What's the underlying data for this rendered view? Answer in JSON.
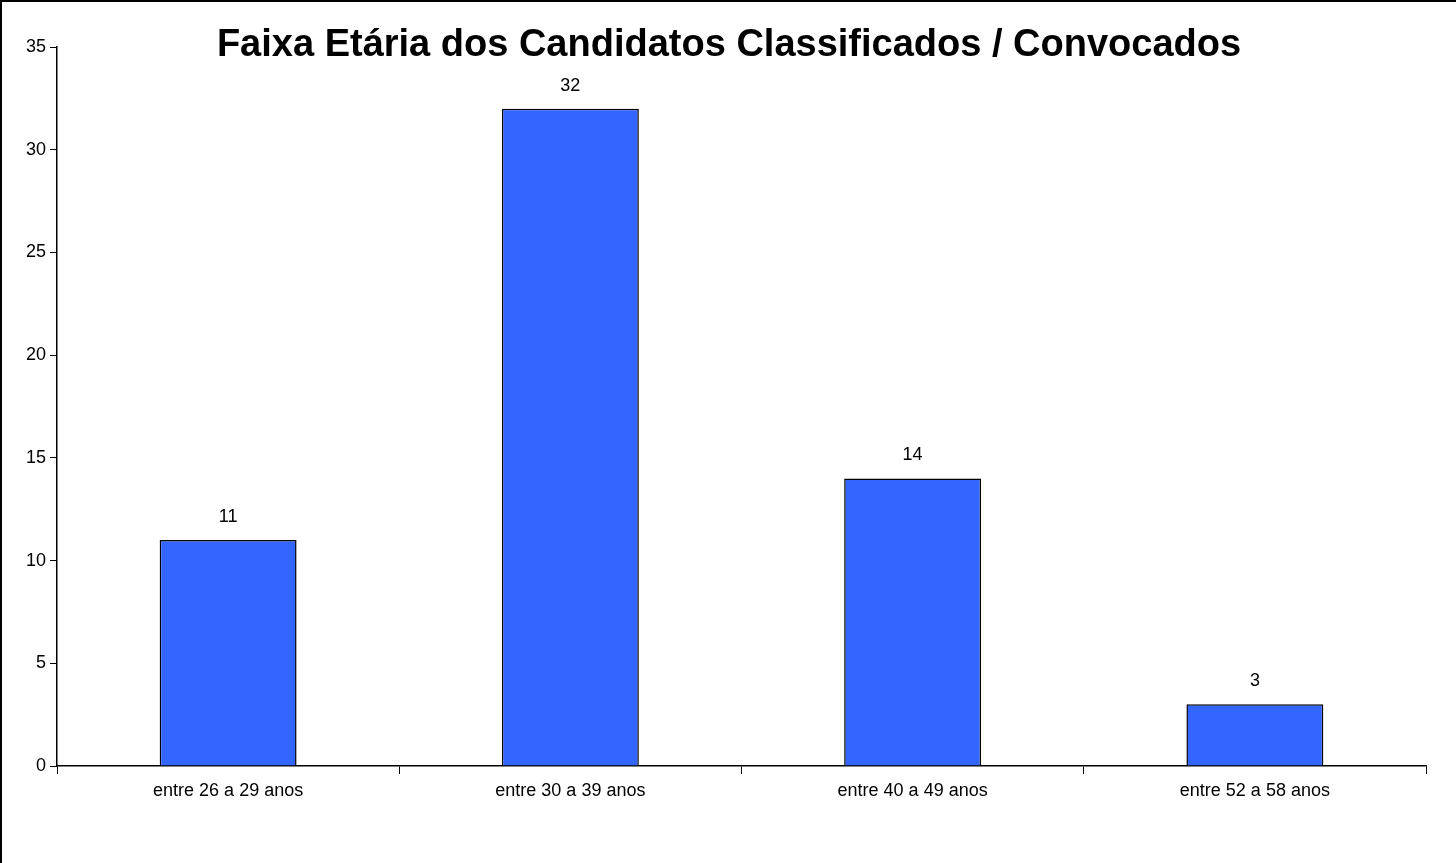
{
  "chart_data": {
    "type": "bar",
    "title": "Faixa Etária dos Candidatos Classificados / Convocados",
    "categories": [
      "entre 26 a 29 anos",
      "entre 30 a 39 anos",
      "entre 40 a 49 anos",
      "entre 52 a 58 anos"
    ],
    "values": [
      11,
      32,
      14,
      3
    ],
    "color": "#3366ff",
    "ylim": [
      0,
      35
    ],
    "yticks": [
      0,
      5,
      10,
      15,
      20,
      25,
      30,
      35
    ],
    "grid": false,
    "legend": false,
    "data_labels": true
  }
}
